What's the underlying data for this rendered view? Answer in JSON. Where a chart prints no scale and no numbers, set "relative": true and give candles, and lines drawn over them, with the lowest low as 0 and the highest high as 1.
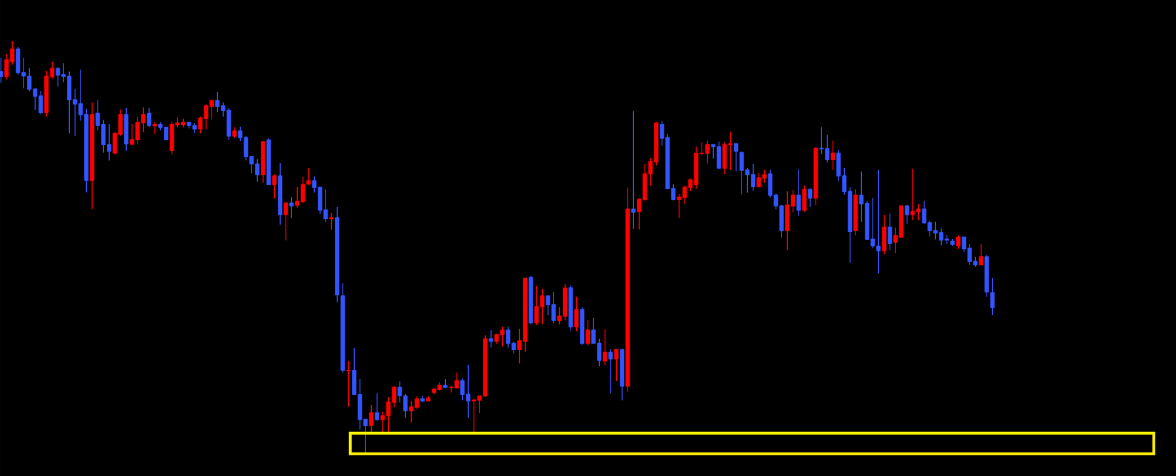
{
  "chart_data": {
    "type": "candlestick",
    "relative": true,
    "categories": [
      null,
      null,
      null,
      null,
      null,
      null,
      null,
      null,
      null,
      null,
      null,
      null,
      null,
      null,
      null,
      null,
      null,
      null,
      null,
      null,
      null,
      null,
      null,
      null,
      null,
      null,
      null,
      null,
      null,
      null,
      null,
      null,
      null,
      null,
      null,
      null,
      null,
      null,
      null,
      null,
      null,
      null,
      null,
      null,
      null,
      null,
      null,
      null,
      null,
      null,
      null,
      null,
      null,
      null,
      null,
      null,
      null,
      null,
      null,
      null,
      null,
      null,
      null,
      null,
      null,
      null,
      null,
      null,
      null,
      null,
      null,
      null,
      null,
      null,
      null,
      null,
      null,
      null,
      null,
      null,
      null,
      null,
      null,
      null,
      null,
      null,
      null,
      null,
      null,
      null,
      null,
      null,
      null,
      null,
      null,
      null,
      null,
      null,
      null,
      null,
      null,
      null,
      null,
      null,
      null,
      null,
      null,
      null,
      null,
      null,
      null,
      null,
      null,
      null,
      null,
      null,
      null,
      null,
      null,
      null,
      null,
      null,
      null,
      null,
      null,
      null,
      null,
      null,
      null,
      null,
      null,
      null,
      null,
      null,
      null,
      null,
      null,
      null,
      null,
      null,
      null,
      null,
      null,
      null,
      null,
      null,
      null,
      null,
      null,
      null,
      null,
      null,
      null,
      null,
      null,
      null,
      null,
      null,
      null,
      null,
      null,
      null,
      null,
      null,
      null,
      null,
      null,
      null,
      null,
      null,
      null,
      null,
      null,
      null,
      null
    ],
    "ohlc": [
      [
        0.926,
        0.96,
        0.899,
        0.914
      ],
      [
        0.914,
        0.969,
        0.907,
        0.955
      ],
      [
        0.95,
        1.0,
        0.943,
        0.981
      ],
      [
        0.981,
        0.986,
        0.919,
        0.923
      ],
      [
        0.924,
        0.96,
        0.885,
        0.915
      ],
      [
        0.915,
        0.934,
        0.878,
        0.883
      ],
      [
        0.884,
        0.884,
        0.833,
        0.866
      ],
      [
        0.867,
        0.879,
        0.822,
        0.826
      ],
      [
        0.826,
        0.927,
        0.817,
        0.915
      ],
      [
        0.914,
        0.95,
        0.909,
        0.934
      ],
      [
        0.934,
        0.936,
        0.89,
        0.917
      ],
      [
        0.919,
        0.946,
        0.9,
        0.914
      ],
      [
        0.915,
        0.926,
        0.776,
        0.857
      ],
      [
        0.858,
        0.884,
        0.77,
        0.847
      ],
      [
        0.848,
        0.931,
        0.807,
        0.821
      ],
      [
        0.822,
        0.836,
        0.632,
        0.661
      ],
      [
        0.661,
        0.851,
        0.591,
        0.822
      ],
      [
        0.825,
        0.856,
        0.783,
        0.795
      ],
      [
        0.798,
        0.808,
        0.729,
        0.748
      ],
      [
        0.749,
        0.798,
        0.71,
        0.732
      ],
      [
        0.728,
        0.779,
        0.724,
        0.776
      ],
      [
        0.773,
        0.834,
        0.77,
        0.822
      ],
      [
        0.822,
        0.837,
        0.734,
        0.75
      ],
      [
        0.749,
        0.799,
        0.748,
        0.761
      ],
      [
        0.76,
        0.817,
        0.75,
        0.803
      ],
      [
        0.801,
        0.839,
        0.779,
        0.822
      ],
      [
        0.825,
        0.837,
        0.791,
        0.795
      ],
      [
        0.794,
        0.804,
        0.774,
        0.798
      ],
      [
        0.798,
        0.803,
        0.783,
        0.79
      ],
      [
        0.791,
        0.791,
        0.76,
        0.76
      ],
      [
        0.734,
        0.804,
        0.724,
        0.798
      ],
      [
        0.796,
        0.815,
        0.79,
        0.801
      ],
      [
        0.796,
        0.811,
        0.791,
        0.803
      ],
      [
        0.803,
        0.803,
        0.788,
        0.795
      ],
      [
        0.795,
        0.801,
        0.776,
        0.786
      ],
      [
        0.786,
        0.817,
        0.776,
        0.813
      ],
      [
        0.812,
        0.846,
        0.786,
        0.843
      ],
      [
        0.841,
        0.856,
        0.81,
        0.856
      ],
      [
        0.856,
        0.877,
        0.828,
        0.841
      ],
      [
        0.843,
        0.851,
        0.817,
        0.831
      ],
      [
        0.832,
        0.837,
        0.76,
        0.769
      ],
      [
        0.769,
        0.791,
        0.765,
        0.782
      ],
      [
        0.782,
        0.792,
        0.757,
        0.765
      ],
      [
        0.766,
        0.77,
        0.71,
        0.719
      ],
      [
        0.72,
        0.72,
        0.679,
        0.701
      ],
      [
        0.702,
        0.713,
        0.658,
        0.675
      ],
      [
        0.675,
        0.758,
        0.656,
        0.756
      ],
      [
        0.76,
        0.765,
        0.651,
        0.651
      ],
      [
        0.651,
        0.676,
        0.618,
        0.673
      ],
      [
        0.673,
        0.704,
        0.554,
        0.578
      ],
      [
        0.578,
        0.607,
        0.516,
        0.607
      ],
      [
        0.607,
        0.621,
        0.57,
        0.599
      ],
      [
        0.601,
        0.645,
        0.596,
        0.611
      ],
      [
        0.61,
        0.67,
        0.606,
        0.652
      ],
      [
        0.652,
        0.692,
        0.652,
        0.661
      ],
      [
        0.661,
        0.671,
        0.632,
        0.644
      ],
      [
        0.645,
        0.645,
        0.58,
        0.589
      ],
      [
        0.59,
        0.64,
        0.561,
        0.568
      ],
      [
        0.568,
        0.583,
        0.542,
        0.571
      ],
      [
        0.571,
        0.597,
        0.366,
        0.383
      ],
      [
        0.381,
        0.412,
        0.194,
        0.2
      ],
      [
        0.199,
        0.223,
        0.111,
        0.2
      ],
      [
        0.2,
        0.254,
        0.141,
        0.141
      ],
      [
        0.141,
        0.178,
        0.056,
        0.08
      ],
      [
        0.081,
        0.081,
        0.0,
        0.065
      ],
      [
        0.065,
        0.116,
        0.05,
        0.097
      ],
      [
        0.097,
        0.144,
        0.077,
        0.08
      ],
      [
        0.08,
        0.099,
        0.048,
        0.09
      ],
      [
        0.089,
        0.135,
        0.048,
        0.123
      ],
      [
        0.122,
        0.161,
        0.11,
        0.159
      ],
      [
        0.159,
        0.173,
        0.122,
        0.138
      ],
      [
        0.138,
        0.142,
        0.085,
        0.101
      ],
      [
        0.101,
        0.125,
        0.073,
        0.111
      ],
      [
        0.11,
        0.137,
        0.106,
        0.131
      ],
      [
        0.131,
        0.138,
        0.122,
        0.125
      ],
      [
        0.125,
        0.137,
        0.125,
        0.133
      ],
      [
        0.146,
        0.157,
        0.141,
        0.154
      ],
      [
        0.153,
        0.171,
        0.151,
        0.164
      ],
      [
        0.164,
        0.178,
        0.158,
        0.158
      ],
      [
        0.158,
        0.163,
        0.146,
        0.159
      ],
      [
        0.157,
        0.194,
        0.156,
        0.175
      ],
      [
        0.175,
        0.18,
        0.127,
        0.141
      ],
      [
        0.142,
        0.213,
        0.085,
        0.125
      ],
      [
        0.125,
        0.131,
        0.048,
        0.128
      ],
      [
        0.127,
        0.138,
        0.096,
        0.138
      ],
      [
        0.137,
        0.285,
        0.136,
        0.277
      ],
      [
        0.277,
        0.298,
        0.255,
        0.27
      ],
      [
        0.27,
        0.289,
        0.264,
        0.287
      ],
      [
        0.286,
        0.306,
        0.258,
        0.298
      ],
      [
        0.298,
        0.306,
        0.255,
        0.265
      ],
      [
        0.266,
        0.27,
        0.241,
        0.25
      ],
      [
        0.25,
        0.301,
        0.217,
        0.272
      ],
      [
        0.27,
        0.424,
        0.245,
        0.424
      ],
      [
        0.426,
        0.429,
        0.312,
        0.315
      ],
      [
        0.315,
        0.405,
        0.31,
        0.355
      ],
      [
        0.354,
        0.398,
        0.312,
        0.381
      ],
      [
        0.381,
        0.381,
        0.334,
        0.359
      ],
      [
        0.36,
        0.391,
        0.314,
        0.321
      ],
      [
        0.321,
        0.353,
        0.312,
        0.332
      ],
      [
        0.331,
        0.41,
        0.321,
        0.4
      ],
      [
        0.401,
        0.407,
        0.296,
        0.305
      ],
      [
        0.305,
        0.379,
        0.295,
        0.348
      ],
      [
        0.348,
        0.353,
        0.262,
        0.265
      ],
      [
        0.265,
        0.322,
        0.26,
        0.298
      ],
      [
        0.298,
        0.327,
        0.265,
        0.265
      ],
      [
        0.266,
        0.277,
        0.21,
        0.224
      ],
      [
        0.222,
        0.299,
        0.212,
        0.244
      ],
      [
        0.244,
        0.251,
        0.144,
        0.227
      ],
      [
        0.227,
        0.251,
        0.174,
        0.251
      ],
      [
        0.251,
        0.251,
        0.127,
        0.161
      ],
      [
        0.161,
        0.644,
        0.148,
        0.592
      ],
      [
        0.592,
        0.83,
        0.544,
        0.584
      ],
      [
        0.585,
        0.618,
        0.542,
        0.616
      ],
      [
        0.615,
        0.701,
        0.611,
        0.678
      ],
      [
        0.677,
        0.716,
        0.649,
        0.708
      ],
      [
        0.706,
        0.804,
        0.698,
        0.801
      ],
      [
        0.798,
        0.806,
        0.746,
        0.764
      ],
      [
        0.766,
        0.775,
        0.641,
        0.641
      ],
      [
        0.642,
        0.652,
        0.613,
        0.615
      ],
      [
        0.615,
        0.628,
        0.57,
        0.621
      ],
      [
        0.62,
        0.649,
        0.604,
        0.645
      ],
      [
        0.644,
        0.666,
        0.636,
        0.663
      ],
      [
        0.651,
        0.744,
        0.641,
        0.728
      ],
      [
        0.727,
        0.754,
        0.722,
        0.728
      ],
      [
        0.727,
        0.758,
        0.703,
        0.749
      ],
      [
        0.749,
        0.749,
        0.715,
        0.743
      ],
      [
        0.744,
        0.756,
        0.689,
        0.691
      ],
      [
        0.691,
        0.754,
        0.677,
        0.749
      ],
      [
        0.748,
        0.78,
        0.687,
        0.751
      ],
      [
        0.751,
        0.751,
        0.684,
        0.732
      ],
      [
        0.73,
        0.73,
        0.627,
        0.686
      ],
      [
        0.687,
        0.692,
        0.632,
        0.675
      ],
      [
        0.676,
        0.702,
        0.637,
        0.646
      ],
      [
        0.646,
        0.68,
        0.644,
        0.668
      ],
      [
        0.667,
        0.687,
        0.656,
        0.676
      ],
      [
        0.678,
        0.687,
        0.62,
        0.625
      ],
      [
        0.626,
        0.63,
        0.591,
        0.599
      ],
      [
        0.6,
        0.602,
        0.523,
        0.539
      ],
      [
        0.539,
        0.635,
        0.492,
        0.602
      ],
      [
        0.599,
        0.638,
        0.584,
        0.626
      ],
      [
        0.626,
        0.689,
        0.575,
        0.589
      ],
      [
        0.589,
        0.649,
        0.585,
        0.64
      ],
      [
        0.64,
        0.642,
        0.597,
        0.618
      ],
      [
        0.618,
        0.742,
        0.601,
        0.74
      ],
      [
        0.74,
        0.791,
        0.725,
        0.738
      ],
      [
        0.739,
        0.772,
        0.705,
        0.712
      ],
      [
        0.712,
        0.758,
        0.687,
        0.728
      ],
      [
        0.728,
        0.735,
        0.661,
        0.672
      ],
      [
        0.673,
        0.692,
        0.627,
        0.634
      ],
      [
        0.635,
        0.645,
        0.461,
        0.537
      ],
      [
        0.539,
        0.64,
        0.528,
        0.626
      ],
      [
        0.626,
        0.683,
        0.561,
        0.604
      ],
      [
        0.606,
        0.612,
        0.518,
        0.518
      ],
      [
        0.519,
        0.619,
        0.497,
        0.502
      ],
      [
        0.502,
        0.687,
        0.435,
        0.49
      ],
      [
        0.49,
        0.578,
        0.482,
        0.548
      ],
      [
        0.548,
        0.581,
        0.492,
        0.508
      ],
      [
        0.511,
        0.547,
        0.485,
        0.528
      ],
      [
        0.523,
        0.6,
        0.523,
        0.6
      ],
      [
        0.6,
        0.602,
        0.556,
        0.578
      ],
      [
        0.578,
        0.69,
        0.565,
        0.586
      ],
      [
        0.585,
        0.604,
        0.565,
        0.592
      ],
      [
        0.592,
        0.612,
        0.556,
        0.558
      ],
      [
        0.559,
        0.564,
        0.525,
        0.539
      ],
      [
        0.54,
        0.561,
        0.518,
        0.533
      ],
      [
        0.535,
        0.545,
        0.504,
        0.516
      ],
      [
        0.519,
        0.529,
        0.507,
        0.516
      ],
      [
        0.514,
        0.519,
        0.502,
        0.506
      ],
      [
        0.502,
        0.528,
        0.495,
        0.524
      ],
      [
        0.524,
        0.524,
        0.488,
        0.495
      ],
      [
        0.497,
        0.507,
        0.456,
        0.464
      ],
      [
        0.465,
        0.476,
        0.452,
        0.456
      ],
      [
        0.456,
        0.507,
        0.456,
        0.476
      ],
      [
        0.476,
        0.481,
        0.379,
        0.39
      ],
      [
        0.389,
        0.424,
        0.334,
        0.352
      ]
    ],
    "colors": [
      "#3355ff",
      "#ff0000",
      "#ff0000",
      "#3355ff",
      "#3355ff",
      "#3355ff",
      "#3355ff",
      "#3355ff",
      "#ff0000",
      "#ff0000",
      "#3355ff",
      "#3355ff",
      "#3355ff",
      "#3355ff",
      "#3355ff",
      "#3355ff",
      "#ff0000",
      "#3355ff",
      "#3355ff",
      "#3355ff",
      "#ff0000",
      "#ff0000",
      "#3355ff",
      "#ff0000",
      "#ff0000",
      "#ff0000",
      "#3355ff",
      "#ff0000",
      "#3355ff",
      "#3355ff",
      "#ff0000",
      "#ff0000",
      "#ff0000",
      "#3355ff",
      "#3355ff",
      "#ff0000",
      "#ff0000",
      "#ff0000",
      "#3355ff",
      "#3355ff",
      "#3355ff",
      "#ff0000",
      "#3355ff",
      "#3355ff",
      "#3355ff",
      "#3355ff",
      "#ff0000",
      "#3355ff",
      "#ff0000",
      "#3355ff",
      "#ff0000",
      "#3355ff",
      "#ff0000",
      "#ff0000",
      "#ff0000",
      "#3355ff",
      "#3355ff",
      "#3355ff",
      "#ff0000",
      "#3355ff",
      "#3355ff",
      "#ff0000",
      "#3355ff",
      "#3355ff",
      "#3355ff",
      "#ff0000",
      "#3355ff",
      "#ff0000",
      "#ff0000",
      "#ff0000",
      "#3355ff",
      "#3355ff",
      "#ff0000",
      "#ff0000",
      "#3355ff",
      "#ff0000",
      "#ff0000",
      "#ff0000",
      "#3355ff",
      "#ff0000",
      "#ff0000",
      "#3355ff",
      "#3355ff",
      "#ff0000",
      "#ff0000",
      "#ff0000",
      "#3355ff",
      "#ff0000",
      "#ff0000",
      "#3355ff",
      "#3355ff",
      "#ff0000",
      "#ff0000",
      "#3355ff",
      "#ff0000",
      "#ff0000",
      "#3355ff",
      "#3355ff",
      "#ff0000",
      "#ff0000",
      "#3355ff",
      "#ff0000",
      "#3355ff",
      "#ff0000",
      "#3355ff",
      "#3355ff",
      "#ff0000",
      "#3355ff",
      "#ff0000",
      "#3355ff",
      "#ff0000",
      "#3355ff",
      "#ff0000",
      "#ff0000",
      "#ff0000",
      "#ff0000",
      "#3355ff",
      "#3355ff",
      "#3355ff",
      "#ff0000",
      "#ff0000",
      "#ff0000",
      "#ff0000",
      "#ff0000",
      "#ff0000",
      "#3355ff",
      "#3355ff",
      "#ff0000",
      "#ff0000",
      "#3355ff",
      "#3355ff",
      "#3355ff",
      "#3355ff",
      "#ff0000",
      "#ff0000",
      "#3355ff",
      "#3355ff",
      "#3355ff",
      "#ff0000",
      "#ff0000",
      "#3355ff",
      "#ff0000",
      "#3355ff",
      "#ff0000",
      "#3355ff",
      "#3355ff",
      "#ff0000",
      "#3355ff",
      "#3355ff",
      "#3355ff",
      "#ff0000",
      "#3355ff",
      "#3355ff",
      "#3355ff",
      "#3355ff",
      "#ff0000",
      "#3355ff",
      "#ff0000",
      "#ff0000",
      "#3355ff",
      "#ff0000",
      "#ff0000",
      "#3355ff",
      "#3355ff",
      "#3355ff",
      "#3355ff",
      "#3355ff",
      "#3355ff",
      "#ff0000",
      "#3355ff",
      "#3355ff",
      "#3355ff",
      "#ff0000",
      "#3355ff",
      "#3355ff"
    ]
  }
}
